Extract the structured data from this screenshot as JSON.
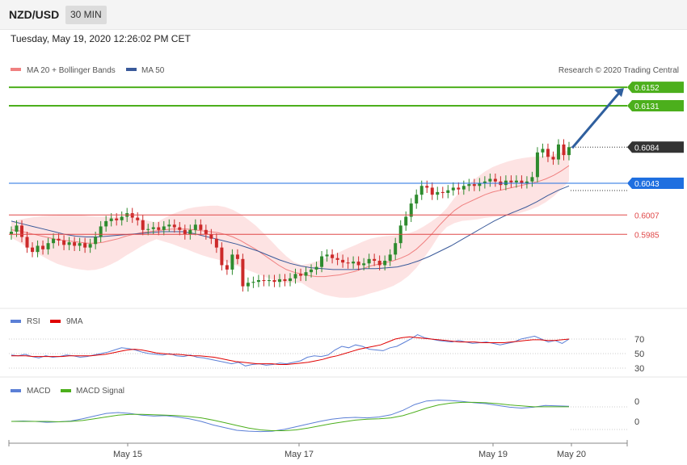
{
  "header": {
    "pair": "NZD/USD",
    "timeframe": "30 MIN",
    "datetime": "Tuesday, May 19, 2020 12:26:02 PM CET"
  },
  "legend": {
    "ma20": "MA 20 + Bollinger Bands",
    "ma50": "MA 50",
    "copyright": "Research © 2020 Trading Central"
  },
  "rsi_legend": {
    "rsi": "RSI",
    "ma9": "9MA"
  },
  "macd_legend": {
    "macd": "MACD",
    "signal": "MACD Signal"
  },
  "colors": {
    "green": "#4caf1c",
    "blue_level": "#1f6fe0",
    "red_level": "#e04848",
    "price_tag": "#333333",
    "arrow": "#2f5f9e",
    "bollinger": "#fde0e0",
    "ma20": "#f08080",
    "ma50": "#3a5a9a",
    "candle_up": "#2e8b2e",
    "candle_down": "#cc2a2a"
  },
  "chart_data": [
    {
      "type": "candlestick",
      "panel": "price",
      "levels": [
        {
          "value": 0.6152,
          "label": "0.6152",
          "kind": "resistance-target"
        },
        {
          "value": 0.6131,
          "label": "0.6131",
          "kind": "resistance-target"
        },
        {
          "value": 0.6084,
          "label": "0.6084",
          "kind": "last-price"
        },
        {
          "value": 0.6043,
          "label": "0.6043",
          "kind": "pivot"
        },
        {
          "value": 0.6007,
          "label": "0.6007",
          "kind": "support"
        },
        {
          "value": 0.5985,
          "label": "0.5985",
          "kind": "support"
        }
      ],
      "x_labels": [
        "May 15",
        "May 17",
        "May 19",
        "May 20"
      ],
      "close": [
        0.5988,
        0.5995,
        0.5982,
        0.597,
        0.5965,
        0.5972,
        0.5968,
        0.5975,
        0.598,
        0.5978,
        0.5973,
        0.5976,
        0.5972,
        0.5975,
        0.597,
        0.5974,
        0.5982,
        0.5994,
        0.6,
        0.6003,
        0.6001,
        0.6005,
        0.6009,
        0.6004,
        0.6001,
        0.599,
        0.5991,
        0.5993,
        0.599,
        0.5994,
        0.5996,
        0.5993,
        0.599,
        0.5985,
        0.599,
        0.5996,
        0.599,
        0.5985,
        0.598,
        0.597,
        0.595,
        0.5945,
        0.5962,
        0.5957,
        0.5926,
        0.593,
        0.5931,
        0.5933,
        0.5932,
        0.5933,
        0.5931,
        0.5934,
        0.5932,
        0.5935,
        0.594,
        0.5938,
        0.5942,
        0.5945,
        0.5948,
        0.596,
        0.5962,
        0.5958,
        0.5956,
        0.5953,
        0.5952,
        0.5954,
        0.595,
        0.5952,
        0.5957,
        0.5955,
        0.595,
        0.5955,
        0.5962,
        0.5975,
        0.5995,
        0.6005,
        0.602,
        0.603,
        0.604,
        0.6038,
        0.603,
        0.6033,
        0.6032,
        0.6035,
        0.6038,
        0.6036,
        0.604,
        0.6042,
        0.604,
        0.6043,
        0.6045,
        0.6048,
        0.6045,
        0.6041,
        0.6046,
        0.6044,
        0.6046,
        0.6043,
        0.6045,
        0.605,
        0.6078,
        0.6082,
        0.6073,
        0.607,
        0.6087,
        0.6075,
        0.6084
      ],
      "ma20": [
        0.599,
        0.5989,
        0.5987,
        0.5985,
        0.5983,
        0.5981,
        0.5979,
        0.5978,
        0.5977,
        0.5976,
        0.5975,
        0.5975,
        0.5976,
        0.5978,
        0.598,
        0.5983,
        0.5985,
        0.5987,
        0.5988,
        0.5989,
        0.599,
        0.5991,
        0.5991,
        0.5991,
        0.599,
        0.5989,
        0.5988,
        0.5987,
        0.5985,
        0.5982,
        0.5978,
        0.5973,
        0.5968,
        0.5962,
        0.5956,
        0.595,
        0.5945,
        0.5942,
        0.594,
        0.5938,
        0.5937,
        0.5937,
        0.5938,
        0.5939,
        0.5941,
        0.5943,
        0.5946,
        0.5949,
        0.5951,
        0.5953,
        0.5955,
        0.5958,
        0.5962,
        0.5968,
        0.5976,
        0.5985,
        0.5995,
        0.6004,
        0.6012,
        0.6018,
        0.6022,
        0.6026,
        0.603,
        0.6033,
        0.6035,
        0.6037,
        0.6039,
        0.6041,
        0.6043,
        0.6045,
        0.6048,
        0.6052,
        0.6057,
        0.6063
      ],
      "ma50": [
        0.6,
        0.5997,
        0.5994,
        0.5991,
        0.5988,
        0.5985,
        0.5983,
        0.5982,
        0.5982,
        0.5983,
        0.5984,
        0.5985,
        0.5986,
        0.5987,
        0.5988,
        0.5988,
        0.5988,
        0.5986,
        0.5983,
        0.598,
        0.5977,
        0.5974,
        0.597,
        0.5966,
        0.5961,
        0.5956,
        0.5952,
        0.5949,
        0.5947,
        0.5946,
        0.5945,
        0.5945,
        0.5945,
        0.5946,
        0.5946,
        0.5947,
        0.5948,
        0.5951,
        0.5955,
        0.596,
        0.5966,
        0.5972,
        0.5979,
        0.5986,
        0.5993,
        0.6,
        0.6006,
        0.6011,
        0.6016,
        0.6022,
        0.6029,
        0.6035,
        0.604
      ]
    },
    {
      "type": "line",
      "panel": "rsi",
      "tick_labels": [
        "70",
        "50",
        "30"
      ],
      "ylim": [
        20,
        80
      ],
      "series": [
        {
          "name": "RSI",
          "values": [
            48,
            47,
            49,
            46,
            44,
            47,
            45,
            46,
            48,
            47,
            45,
            46,
            48,
            50,
            52,
            55,
            58,
            57,
            55,
            52,
            50,
            49,
            48,
            50,
            47,
            46,
            48,
            45,
            44,
            42,
            40,
            38,
            36,
            38,
            33,
            35,
            36,
            34,
            35,
            37,
            36,
            38,
            40,
            45,
            47,
            46,
            48,
            55,
            60,
            58,
            62,
            60,
            56,
            55,
            54,
            58,
            60,
            65,
            70,
            76,
            72,
            70,
            68,
            67,
            66,
            68,
            66,
            64,
            65,
            66,
            64,
            62,
            64,
            66,
            70,
            72,
            74,
            70,
            66,
            68,
            64,
            70
          ]
        },
        {
          "name": "9MA",
          "values": [
            47,
            47,
            47,
            46,
            46,
            46,
            46,
            46,
            47,
            47,
            47,
            47,
            48,
            49,
            51,
            53,
            55,
            56,
            55,
            53,
            51,
            50,
            49,
            49,
            48,
            47,
            47,
            46,
            45,
            43,
            41,
            39,
            38,
            37,
            36,
            36,
            36,
            35,
            35,
            36,
            37,
            38,
            40,
            42,
            45,
            47,
            50,
            53,
            56,
            58,
            60,
            62,
            66,
            70,
            72,
            73,
            72,
            71,
            70,
            69,
            68,
            67,
            66,
            66,
            66,
            65,
            65,
            65,
            65,
            66,
            67,
            68,
            69,
            69,
            68,
            68,
            69,
            70
          ]
        }
      ]
    },
    {
      "type": "line",
      "panel": "macd",
      "tick_labels": [
        "0",
        "0"
      ],
      "series": [
        {
          "name": "MACD",
          "values": [
            0.0,
            0.1,
            0.0,
            -0.2,
            -0.1,
            0.1,
            0.6,
            1.2,
            1.8,
            2.0,
            1.8,
            1.4,
            1.2,
            1.3,
            1.0,
            0.6,
            0.0,
            -0.8,
            -1.4,
            -2.0,
            -2.2,
            -2.3,
            -2.2,
            -1.8,
            -1.2,
            -0.6,
            0.0,
            0.5,
            0.8,
            0.9,
            0.8,
            1.0,
            1.5,
            2.5,
            3.8,
            4.6,
            4.8,
            4.7,
            4.5,
            4.2,
            4.0,
            3.6,
            3.2,
            3.0,
            3.2,
            3.6,
            3.5,
            3.4
          ]
        },
        {
          "name": "MACD Signal",
          "values": [
            0.0,
            0.0,
            0.0,
            0.0,
            -0.1,
            0.0,
            0.2,
            0.6,
            1.0,
            1.4,
            1.6,
            1.6,
            1.5,
            1.4,
            1.3,
            1.1,
            0.8,
            0.3,
            -0.3,
            -0.9,
            -1.5,
            -1.9,
            -2.1,
            -2.1,
            -1.9,
            -1.5,
            -1.0,
            -0.5,
            -0.1,
            0.3,
            0.5,
            0.6,
            0.8,
            1.3,
            2.1,
            3.0,
            3.7,
            4.1,
            4.3,
            4.3,
            4.2,
            4.0,
            3.7,
            3.5,
            3.3,
            3.3,
            3.3,
            3.3
          ]
        }
      ]
    }
  ]
}
